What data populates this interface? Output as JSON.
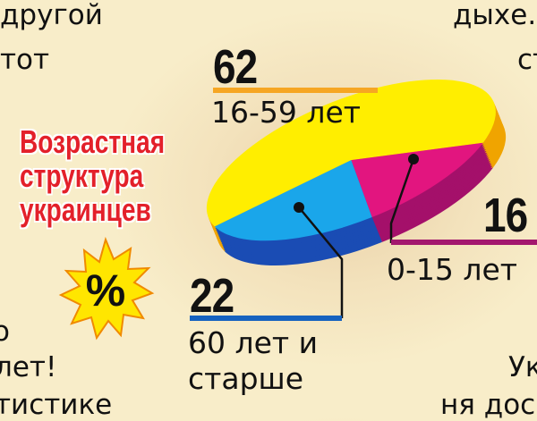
{
  "background_text": [
    "другой",
    "тот",
    "дыхе.",
    "ст",
    "о",
    "лет!",
    "тистике",
    "Ук",
    "ня дос"
  ],
  "badge": "%",
  "chart_data": {
    "type": "pie",
    "title_lines": [
      "Возрастная",
      "структура",
      "украинцев"
    ],
    "categories": [
      "16-59 лет",
      "0-15 лет",
      "60 лет и старше"
    ],
    "values": [
      62,
      16,
      22
    ],
    "colors": [
      "#ffee00",
      "#e2157f",
      "#1aa6ea"
    ],
    "side_colors": [
      "#f0a400",
      "#a4106a",
      "#1a4cb4"
    ],
    "label_colors": [
      "#f6a623",
      "#a3176e",
      "#1662bf"
    ]
  }
}
